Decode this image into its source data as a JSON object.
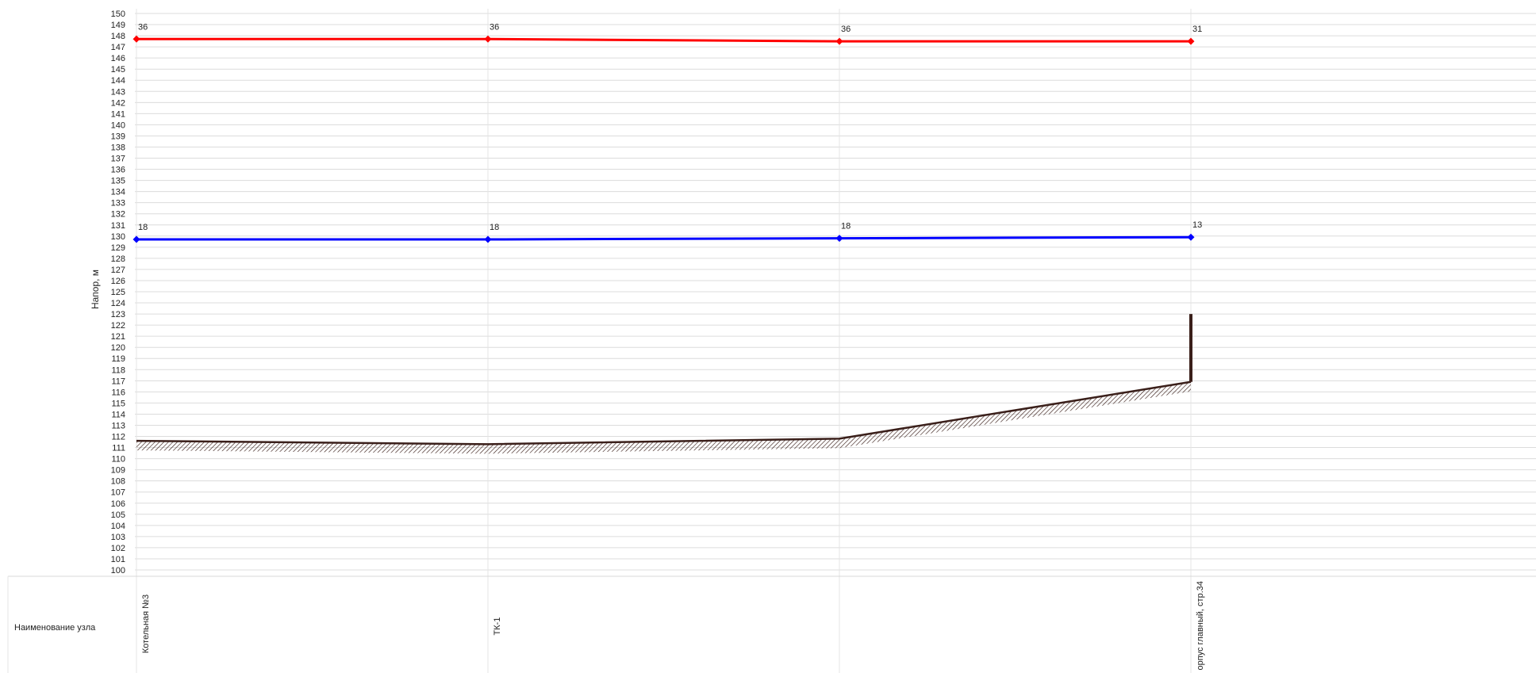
{
  "chart_data": {
    "type": "line",
    "ylabel": "Напор, м",
    "ylim": [
      100,
      150
    ],
    "ytick_step": 1,
    "grid": true,
    "x_nodes": [
      {
        "name": "Котельная №3"
      },
      {
        "name": "ТК-1"
      },
      {
        "name": ""
      },
      {
        "name": "орпус главный, стр.34"
      }
    ],
    "row_label": "Наименование узла",
    "series": [
      {
        "key": "supply",
        "color": "#ff0000",
        "values": [
          147.7,
          147.7,
          147.5,
          147.5
        ],
        "labels": [
          "36",
          "36",
          "36",
          "31"
        ]
      },
      {
        "key": "return",
        "color": "#0000ff",
        "values": [
          129.7,
          129.7,
          129.8,
          129.9
        ],
        "labels": [
          "18",
          "18",
          "18",
          "13"
        ]
      }
    ],
    "ground": {
      "color": "#3a1f1a",
      "values": [
        111.6,
        111.3,
        111.8,
        116.9
      ]
    },
    "riser": {
      "color": "#3a1f1a",
      "node_index": 3,
      "from": 116.9,
      "to": 123.0
    }
  }
}
